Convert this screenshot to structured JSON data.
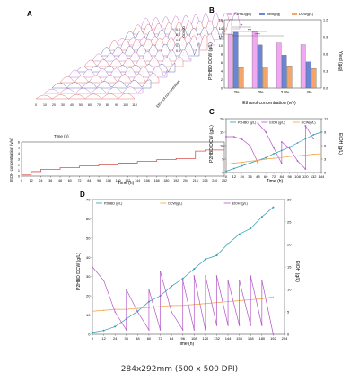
{
  "caption": "284x292mm (500 x 500 DPI)",
  "panel_letters": {
    "a": "A",
    "b": "B",
    "c": "C",
    "d": "D"
  },
  "colors": {
    "teal": "#2a9db3",
    "purple": "#b455c8",
    "orange": "#f2a13a",
    "red": "#d9534f",
    "bar_pink": "#f0a8f0",
    "bar_blue": "#6c86d6",
    "bar_orange": "#f4a56a",
    "axis": "#333333"
  },
  "chart_data": [
    {
      "id": "A_waterfall",
      "type": "area",
      "xlabel": "Time (h)",
      "ylabel": "OD600",
      "zlabel": "Ethanol concentration",
      "x_ticks": [
        "0",
        "10",
        "20",
        "30",
        "40",
        "50",
        "60",
        "70",
        "80",
        "90",
        "100",
        "110"
      ],
      "y_ticks": [
        "0.0",
        "0.2",
        "0.4",
        "0.6",
        "0.8"
      ]
    },
    {
      "id": "A_ethanol",
      "type": "line",
      "xlabel": "Time (h)",
      "ylabel": "EtOH concentration (v/v)",
      "ylim": [
        0,
        6
      ],
      "y_ticks": [
        "0",
        "1",
        "2",
        "3",
        "4",
        "5",
        "6"
      ],
      "x_ticks": [
        "0",
        "12",
        "24",
        "36",
        "48",
        "60",
        "72",
        "84",
        "96",
        "108",
        "120",
        "132",
        "144",
        "156",
        "168",
        "180",
        "192",
        "204",
        "216",
        "228",
        "240",
        "252"
      ],
      "x": [
        0,
        12,
        12,
        24,
        24,
        48,
        48,
        72,
        72,
        96,
        96,
        120,
        120,
        144,
        144,
        168,
        168,
        192,
        192,
        216,
        216,
        228,
        228,
        252
      ],
      "y": [
        0.2,
        0.2,
        0.8,
        0.8,
        1.2,
        1.2,
        1.5,
        1.5,
        1.8,
        1.8,
        2.0,
        2.0,
        2.3,
        2.3,
        2.6,
        2.6,
        2.9,
        2.9,
        3.1,
        3.1,
        4.4,
        4.4,
        4.6,
        4.6
      ]
    },
    {
      "id": "B",
      "type": "bar",
      "xlabel": "Ethanol concentration (v/v)",
      "ylabel": "P2HBD DCW (g/L)",
      "ylabel_right": "Yield (g/g)",
      "ylim": [
        0,
        16
      ],
      "ylim_right": [
        0,
        1.2
      ],
      "y_ticks": [
        "0",
        "2",
        "4",
        "6",
        "8",
        "10",
        "12",
        "14",
        "16"
      ],
      "y_ticks_right": [
        "0.0",
        "0.3",
        "0.6",
        "0.9",
        "1.2"
      ],
      "categories": [
        "2%",
        "3%",
        "3.5%",
        "4%"
      ],
      "legend": [
        "P2HBD(g/L)",
        "Yield(g/g)",
        "DCW(g/L)"
      ],
      "series": [
        {
          "name": "P2HBD(g/L)",
          "values": [
            12.6,
            13.2,
            10.6,
            10.2
          ]
        },
        {
          "name": "Yield(g/g)",
          "values": [
            0.98,
            0.76,
            0.58,
            0.46
          ]
        },
        {
          "name": "DCW(g/L)",
          "values": [
            4.8,
            5.0,
            5.2,
            4.6
          ]
        }
      ],
      "significance": [
        "**",
        "***",
        "****"
      ]
    },
    {
      "id": "C",
      "type": "line",
      "xlabel": "Time (h)",
      "ylabel": "P2HBD DCW (g/L)",
      "ylabel_right": "EtOH (g/L)",
      "ylim": [
        0,
        20
      ],
      "ylim_right": [
        0,
        12
      ],
      "y_ticks": [
        "0",
        "5",
        "10",
        "15",
        "20"
      ],
      "y_ticks_right": [
        "0",
        "3",
        "6",
        "9",
        "12"
      ],
      "x_ticks": [
        "0",
        "12",
        "24",
        "36",
        "48",
        "60",
        "72",
        "84",
        "96",
        "108",
        "120",
        "132",
        "144"
      ],
      "legend": [
        "P2HBD (g/L)",
        "EtOH (g/L)",
        "DCW(g/L)"
      ],
      "series": [
        {
          "name": "P2HBD (g/L)",
          "axis": "left",
          "x": [
            0,
            12,
            24,
            36,
            48,
            60,
            72,
            84,
            96,
            108,
            120,
            132,
            144
          ],
          "y": [
            0.5,
            1.5,
            2.5,
            3.5,
            4.5,
            5.5,
            7.0,
            8.2,
            9.5,
            11.0,
            12.5,
            14.0,
            15.0
          ]
        },
        {
          "name": "EtOH (g/L)",
          "axis": "right",
          "x": [
            0,
            12,
            24,
            36,
            48,
            48,
            60,
            72,
            84,
            84,
            96,
            108,
            120,
            120,
            132
          ],
          "y": [
            8.0,
            8.0,
            7.4,
            6.0,
            2.2,
            11.0,
            9.0,
            5.5,
            2.0,
            6.8,
            5.4,
            2.6,
            0.8,
            10.4,
            7.6
          ]
        },
        {
          "name": "DCW(g/L)",
          "axis": "left",
          "x": [
            0,
            12,
            24,
            36,
            48,
            60,
            72,
            84,
            96,
            108,
            120,
            132,
            144
          ],
          "y": [
            3.0,
            3.5,
            3.8,
            4.2,
            4.5,
            5.0,
            5.3,
            5.6,
            6.0,
            6.2,
            6.5,
            6.8,
            7.0
          ]
        }
      ]
    },
    {
      "id": "D",
      "type": "line",
      "xlabel": "Time (h)",
      "ylabel": "P2HBD DCW (g/L)",
      "ylabel_right": "EtOH (g/L)",
      "ylim": [
        0,
        70
      ],
      "ylim_right": [
        0,
        30
      ],
      "y_ticks": [
        "0",
        "10",
        "20",
        "30",
        "40",
        "50",
        "60",
        "70"
      ],
      "y_ticks_right": [
        "0",
        "5",
        "10",
        "15",
        "20",
        "25",
        "30"
      ],
      "x_ticks": [
        "0",
        "12",
        "24",
        "36",
        "48",
        "60",
        "72",
        "84",
        "96",
        "108",
        "120",
        "132",
        "144",
        "156",
        "168",
        "180",
        "192",
        "204"
      ],
      "legend": [
        "P2HBD (g/L)",
        "DCW(g/L)",
        "EtOH (g/L)"
      ],
      "series": [
        {
          "name": "P2HBD (g/L)",
          "axis": "left",
          "x": [
            0,
            12,
            24,
            36,
            48,
            60,
            72,
            84,
            96,
            108,
            120,
            132,
            144,
            156,
            168,
            180,
            192
          ],
          "y": [
            1,
            2,
            4,
            8,
            12,
            17,
            20,
            25,
            29,
            34,
            39,
            41,
            47,
            52,
            55,
            61,
            66
          ]
        },
        {
          "name": "DCW(g/L)",
          "axis": "left",
          "x": [
            0,
            12,
            24,
            36,
            48,
            60,
            72,
            84,
            96,
            108,
            120,
            132,
            144,
            156,
            168,
            180,
            192
          ],
          "y": [
            12,
            12.5,
            13,
            13,
            13.5,
            14,
            14.5,
            15,
            15,
            15.5,
            16,
            16.5,
            17,
            17.5,
            18,
            18.5,
            19.5
          ]
        },
        {
          "name": "EtOH (g/L)",
          "axis": "right",
          "x": [
            0,
            12,
            24,
            36,
            36,
            48,
            60,
            60,
            72,
            72,
            84,
            96,
            96,
            108,
            108,
            120,
            120,
            132,
            132,
            144,
            144,
            156,
            156,
            168,
            168,
            180,
            180,
            192
          ],
          "y": [
            15,
            12,
            5,
            1,
            10,
            5,
            1,
            10,
            1,
            14,
            5,
            1,
            12,
            1,
            13,
            1,
            13,
            2,
            13,
            2,
            12,
            2,
            12,
            2,
            13,
            2,
            12,
            0
          ]
        }
      ]
    }
  ]
}
